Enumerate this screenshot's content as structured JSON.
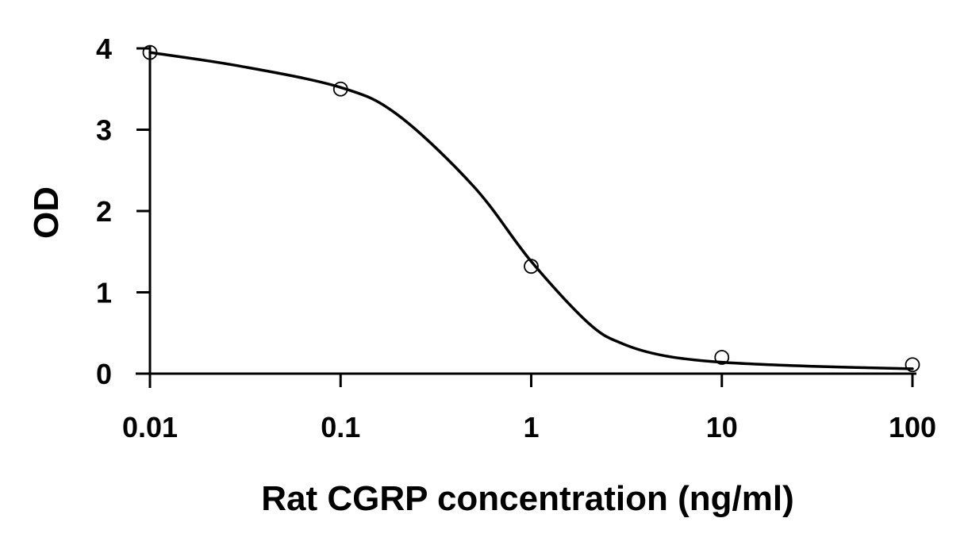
{
  "chart_data": {
    "type": "scatter",
    "title": "",
    "xlabel": "Rat CGRP concentration (ng/ml)",
    "ylabel": "OD",
    "x_scale": "log",
    "xlim": [
      0.01,
      100
    ],
    "ylim": [
      0,
      4
    ],
    "grid": false,
    "x_tick_labels": [
      "0.01",
      "0.1",
      "1",
      "10",
      "100"
    ],
    "y_tick_labels": [
      "0",
      "1",
      "2",
      "3",
      "4"
    ],
    "x_ticks": [
      0.01,
      0.1,
      1,
      10,
      100
    ],
    "y_ticks": [
      0,
      1,
      2,
      3,
      4
    ],
    "series": [
      {
        "type": "scatter",
        "marker": "open-circle",
        "color": "#000000",
        "x": [
          0.01,
          0.1,
          1,
          10,
          100
        ],
        "y": [
          3.95,
          3.5,
          1.32,
          0.2,
          0.11
        ]
      },
      {
        "type": "line",
        "style": "fitted-curve",
        "color": "#000000",
        "x": [
          0.01,
          0.03,
          0.1,
          0.2,
          0.5,
          1,
          2,
          3,
          5,
          10,
          30,
          100
        ],
        "y": [
          3.95,
          3.78,
          3.52,
          3.18,
          2.3,
          1.38,
          0.62,
          0.37,
          0.22,
          0.14,
          0.09,
          0.06
        ]
      }
    ]
  }
}
